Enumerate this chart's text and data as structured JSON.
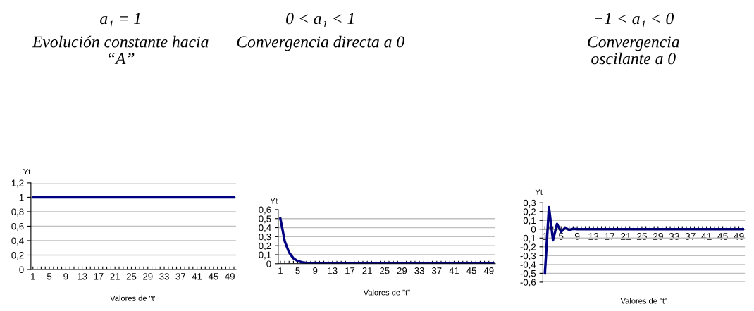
{
  "chart_data": [
    {
      "type": "line",
      "title": "a₁ = 1",
      "subtitle": "Evolución constante hacia\n“A”",
      "xlabel": "Valores de \"t\"",
      "ylabel": "Yt",
      "categories": [
        "1",
        null,
        null,
        null,
        "5",
        null,
        null,
        null,
        "9",
        null,
        null,
        null,
        "13",
        null,
        null,
        null,
        "17",
        null,
        null,
        null,
        "21",
        null,
        null,
        null,
        "25",
        null,
        null,
        null,
        "29",
        null,
        null,
        null,
        "33",
        null,
        null,
        null,
        "37",
        null,
        null,
        null,
        "41",
        null,
        null,
        null,
        "45",
        null,
        null,
        null,
        "49",
        null
      ],
      "series": [
        {
          "color": "#000080",
          "values": [
            1,
            1,
            1,
            1,
            1,
            1,
            1,
            1,
            1,
            1,
            1,
            1,
            1,
            1,
            1,
            1,
            1,
            1,
            1,
            1,
            1,
            1,
            1,
            1,
            1,
            1,
            1,
            1,
            1,
            1,
            1,
            1,
            1,
            1,
            1,
            1,
            1,
            1,
            1,
            1,
            1,
            1,
            1,
            1,
            1,
            1,
            1,
            1,
            1,
            1
          ]
        }
      ],
      "ylim": [
        0,
        1.2
      ],
      "yticks": [
        0,
        {
          "value": 0.2,
          "label": "0,2"
        },
        {
          "value": 0.4,
          "label": "0,4"
        },
        {
          "value": 0.6,
          "label": "0,6"
        },
        {
          "value": 0.8,
          "label": "0,8"
        },
        1,
        {
          "value": 1.2,
          "label": "1,2"
        }
      ],
      "grid": "y",
      "marker": "none",
      "line_style": "solid"
    },
    {
      "type": "line",
      "title": "0 < a₁ < 1",
      "subtitle": "Convergencia directa a 0",
      "xlabel": "Valores de \"t\"",
      "ylabel": "Yt",
      "categories": [
        "1",
        null,
        null,
        null,
        "5",
        null,
        null,
        null,
        "9",
        null,
        null,
        null,
        "13",
        null,
        null,
        null,
        "17",
        null,
        null,
        null,
        "21",
        null,
        null,
        null,
        "25",
        null,
        null,
        null,
        "29",
        null,
        null,
        null,
        "33",
        null,
        null,
        null,
        "37",
        null,
        null,
        null,
        "41",
        null,
        null,
        null,
        "45",
        null,
        null,
        null,
        "49",
        null
      ],
      "series": [
        {
          "color": "#000080",
          "values": [
            0.5,
            0.25,
            0.125,
            0.06,
            0.03,
            0.016,
            0.008,
            0.004,
            0,
            0,
            0,
            0,
            0,
            0,
            0,
            0,
            0,
            0,
            0,
            0,
            0,
            0,
            0,
            0,
            0,
            0,
            0,
            0,
            0,
            0,
            0,
            0,
            0,
            0,
            0,
            0,
            0,
            0,
            0,
            0,
            0,
            0,
            0,
            0,
            0,
            0,
            0,
            0,
            0,
            0
          ]
        }
      ],
      "ylim": [
        0,
        0.6
      ],
      "yticks": [
        0,
        {
          "value": 0.1,
          "label": "0,1"
        },
        {
          "value": 0.2,
          "label": "0,2"
        },
        {
          "value": 0.3,
          "label": "0,3"
        },
        {
          "value": 0.4,
          "label": "0,4"
        },
        {
          "value": 0.5,
          "label": "0,5"
        },
        {
          "value": 0.6,
          "label": "0,6"
        }
      ],
      "grid": "y",
      "marker": "none",
      "line_style": "solid"
    },
    {
      "type": "line",
      "title": "−1 < a₁ < 0",
      "subtitle": "Convergencia\noscilante a 0",
      "xlabel": "Valores de \"t\"",
      "ylabel": "Yt",
      "categories": [
        "1",
        null,
        null,
        null,
        "5",
        null,
        null,
        null,
        "9",
        null,
        null,
        null,
        "13",
        null,
        null,
        null,
        "17",
        null,
        null,
        null,
        "21",
        null,
        null,
        null,
        "25",
        null,
        null,
        null,
        "29",
        null,
        null,
        null,
        "33",
        null,
        null,
        null,
        "37",
        null,
        null,
        null,
        "41",
        null,
        null,
        null,
        "45",
        null,
        null,
        null,
        "49",
        null
      ],
      "series": [
        {
          "color": "#000080",
          "values": [
            -0.5,
            0.25,
            -0.125,
            0.06,
            -0.03,
            0.016,
            -0.008,
            0.004,
            0,
            0,
            0,
            0,
            0,
            0,
            0,
            0,
            0,
            0,
            0,
            0,
            0,
            0,
            0,
            0,
            0,
            0,
            0,
            0,
            0,
            0,
            0,
            0,
            0,
            0,
            0,
            0,
            0,
            0,
            0,
            0,
            0,
            0,
            0,
            0,
            0,
            0,
            0,
            0,
            0,
            0
          ]
        }
      ],
      "ylim": [
        -0.6,
        0.3
      ],
      "yticks": [
        {
          "value": -0.6,
          "label": "-0,6"
        },
        {
          "value": -0.5,
          "label": "-0,5"
        },
        {
          "value": -0.4,
          "label": "-0,4"
        },
        {
          "value": -0.3,
          "label": "-0,3"
        },
        {
          "value": -0.2,
          "label": "-0,2"
        },
        {
          "value": -0.1,
          "label": "-0,1"
        },
        0,
        {
          "value": 0.1,
          "label": "0,1"
        },
        {
          "value": 0.2,
          "label": "0,2"
        },
        {
          "value": 0.3,
          "label": "0,3"
        }
      ],
      "grid": "y",
      "marker": "none",
      "line_style": "solid"
    }
  ]
}
